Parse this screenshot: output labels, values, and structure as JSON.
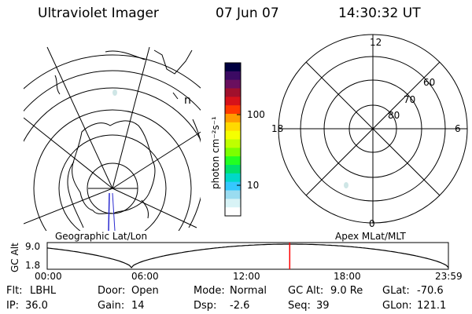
{
  "header": {
    "title": "Ultraviolet Imager",
    "date": "07 Jun 07",
    "time": "14:30:32 UT"
  },
  "left_panel": {
    "caption": "Geographic Lat/Lon",
    "corner_mark": "n"
  },
  "colorbar": {
    "unit": "photon cm⁻²s⁻¹",
    "ticks": [
      "100",
      "10"
    ],
    "colors": [
      "#000040",
      "#3b0a63",
      "#6a0f5e",
      "#a0102c",
      "#d6121a",
      "#ff3a00",
      "#ff9c00",
      "#ffd900",
      "#f5ff00",
      "#bfff00",
      "#7cff00",
      "#22ff22",
      "#00e06b",
      "#00d8c8",
      "#34c8ff",
      "#9adcf0",
      "#d8f3f6",
      "#ffffff"
    ]
  },
  "right_panel": {
    "caption": "Apex MLat/MLT",
    "mlt_labels": {
      "top": "12",
      "left": "18",
      "right": "6",
      "bottom": "0"
    },
    "lat_labels": [
      "60",
      "70",
      "80"
    ]
  },
  "timeline": {
    "ylabel": "GC Alt",
    "y_ticks": [
      "9.0",
      "1.8"
    ],
    "x_ticks": [
      "00:00",
      "06:00",
      "12:00",
      "18:00",
      "23:59"
    ],
    "marker_color": "#ff0000",
    "current_time_fraction": 0.6045
  },
  "status": [
    [
      {
        "label": "Flt:",
        "value": "LBHL"
      },
      {
        "label": "Door:",
        "value": "Open"
      },
      {
        "label": "Mode:",
        "value": "Normal"
      },
      {
        "label": "GC Alt:",
        "value": "9.0 Re"
      },
      {
        "label": "GLat:",
        "value": "-70.6"
      }
    ],
    [
      {
        "label": "IP:",
        "value": "36.0"
      },
      {
        "label": "Gain:",
        "value": "14"
      },
      {
        "label": "Dsp:",
        "value": "-2.6"
      },
      {
        "label": "Seq:",
        "value": "39"
      },
      {
        "label": "GLon:",
        "value": "121.1"
      }
    ]
  ]
}
